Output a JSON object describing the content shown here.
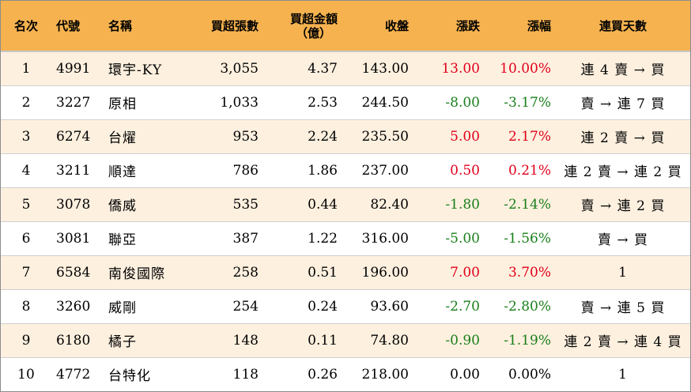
{
  "header": {
    "rank": "名次",
    "code": "代號",
    "name": "名稱",
    "net_buy_lots": "買超張數",
    "net_buy_amount_line1": "買超金額",
    "net_buy_amount_line2": "（億）",
    "close": "收盤",
    "change": "漲跌",
    "change_pct": "漲幅",
    "consecutive_days": "連買天數"
  },
  "colors": {
    "header_bg": "#f5b24f",
    "stripe_bg": "#fdf0df",
    "up": "#e0001b",
    "down": "#1a7f1a"
  },
  "rows": [
    {
      "rank": "1",
      "code": "4991",
      "name": "環宇-KY",
      "lots": "3,055",
      "amount": "4.37",
      "close": "143.00",
      "change": "13.00",
      "pct": "10.00%",
      "dir": "pos",
      "days": "連 4 賣 → 買"
    },
    {
      "rank": "2",
      "code": "3227",
      "name": "原相",
      "lots": "1,033",
      "amount": "2.53",
      "close": "244.50",
      "change": "-8.00",
      "pct": "-3.17%",
      "dir": "neg",
      "days": "賣 → 連 7 買"
    },
    {
      "rank": "3",
      "code": "6274",
      "name": "台燿",
      "lots": "953",
      "amount": "2.24",
      "close": "235.50",
      "change": "5.00",
      "pct": "2.17%",
      "dir": "pos",
      "days": "連 2 賣 → 買"
    },
    {
      "rank": "4",
      "code": "3211",
      "name": "順達",
      "lots": "786",
      "amount": "1.86",
      "close": "237.00",
      "change": "0.50",
      "pct": "0.21%",
      "dir": "pos",
      "days": "連 2 賣 → 連 2 買"
    },
    {
      "rank": "5",
      "code": "3078",
      "name": "僑威",
      "lots": "535",
      "amount": "0.44",
      "close": "82.40",
      "change": "-1.80",
      "pct": "-2.14%",
      "dir": "neg",
      "days": "賣 → 連 2 買"
    },
    {
      "rank": "6",
      "code": "3081",
      "name": "聯亞",
      "lots": "387",
      "amount": "1.22",
      "close": "316.00",
      "change": "-5.00",
      "pct": "-1.56%",
      "dir": "neg",
      "days": "賣 → 買"
    },
    {
      "rank": "7",
      "code": "6584",
      "name": "南俊國際",
      "lots": "258",
      "amount": "0.51",
      "close": "196.00",
      "change": "7.00",
      "pct": "3.70%",
      "dir": "pos",
      "days": "1"
    },
    {
      "rank": "8",
      "code": "3260",
      "name": "威剛",
      "lots": "254",
      "amount": "0.24",
      "close": "93.60",
      "change": "-2.70",
      "pct": "-2.80%",
      "dir": "neg",
      "days": "賣 → 連 5 買"
    },
    {
      "rank": "9",
      "code": "6180",
      "name": "橘子",
      "lots": "148",
      "amount": "0.11",
      "close": "74.80",
      "change": "-0.90",
      "pct": "-1.19%",
      "dir": "neg",
      "days": "連 2 賣 → 連 4 買"
    },
    {
      "rank": "10",
      "code": "4772",
      "name": "台特化",
      "lots": "118",
      "amount": "0.26",
      "close": "218.00",
      "change": "0.00",
      "pct": "0.00%",
      "dir": "zero",
      "days": "1"
    }
  ]
}
